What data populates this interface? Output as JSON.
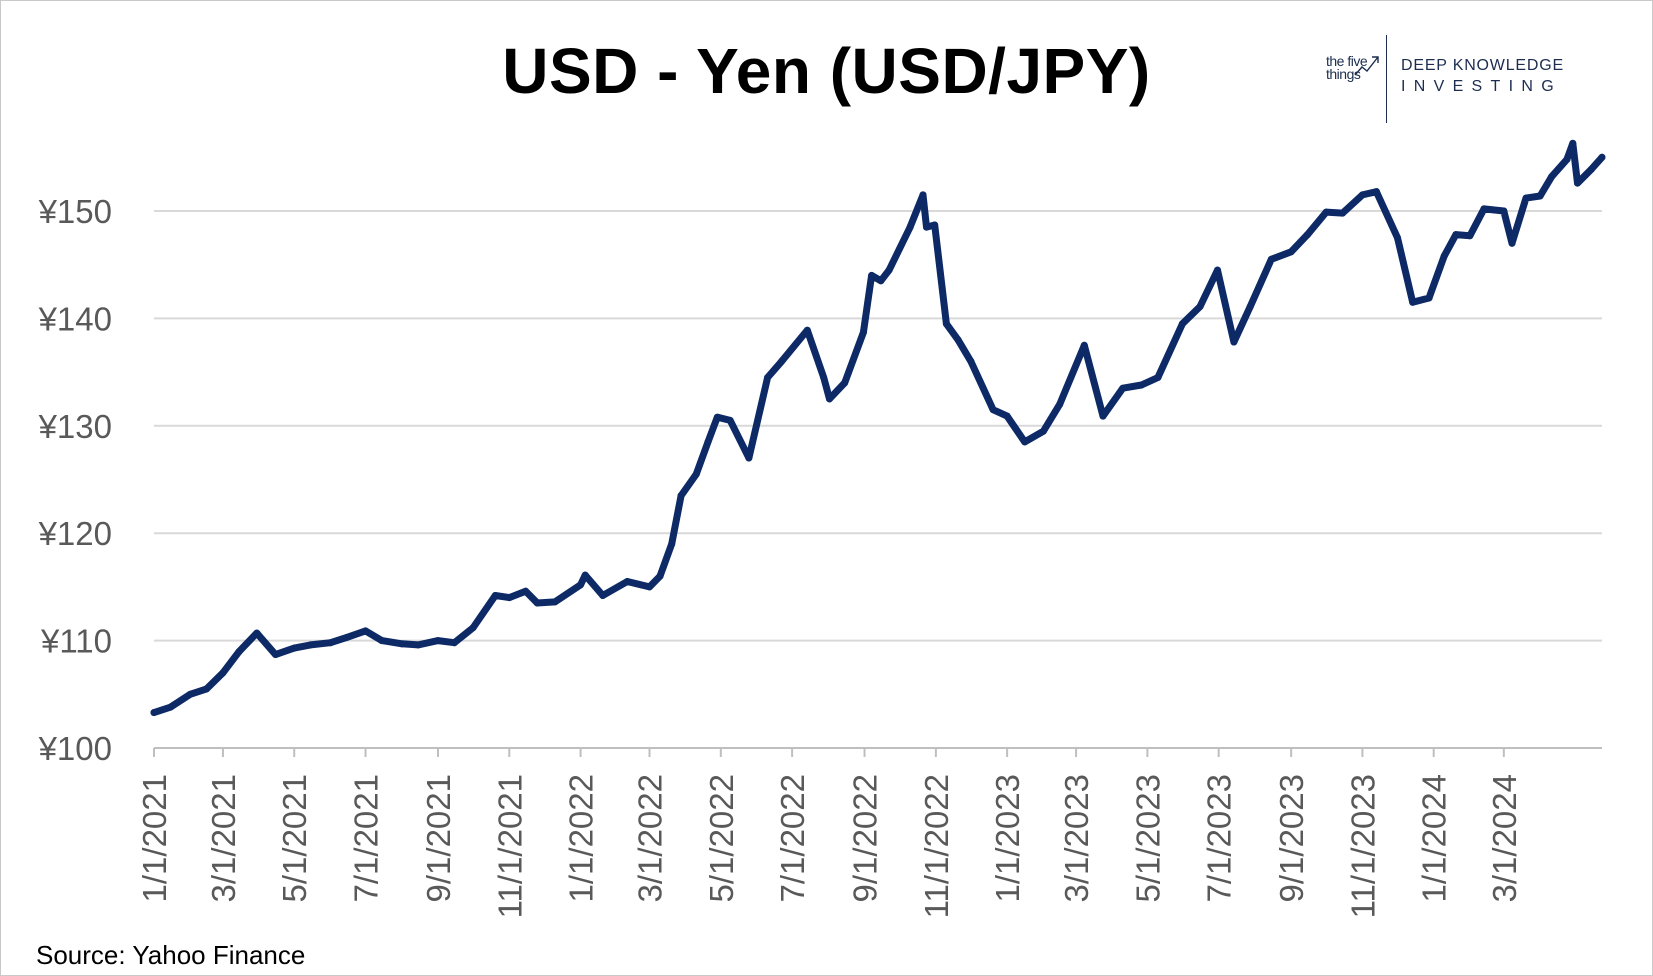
{
  "logo": {
    "small_text": "the five things",
    "line1": "DEEP KNOWLEDGE",
    "line2": "INVESTING"
  },
  "source": "Source: Yahoo Finance",
  "chart_data": {
    "type": "line",
    "title": "USD - Yen (USD/JPY)",
    "xlabel": "",
    "ylabel": "",
    "ylim": [
      100,
      155
    ],
    "yticks": [
      100,
      110,
      120,
      130,
      140,
      150
    ],
    "ytick_labels": [
      "¥100",
      "¥110",
      "¥120",
      "¥130",
      "¥140",
      "¥150"
    ],
    "xticks": [
      "2021-01-01",
      "2021-03-01",
      "2021-05-01",
      "2021-07-01",
      "2021-09-01",
      "2021-11-01",
      "2022-01-01",
      "2022-03-01",
      "2022-05-01",
      "2022-07-01",
      "2022-09-01",
      "2022-11-01",
      "2023-01-01",
      "2023-03-01",
      "2023-05-01",
      "2023-07-01",
      "2023-09-01",
      "2023-11-01",
      "2024-01-01",
      "2024-03-01"
    ],
    "xtick_labels": [
      "1/1/2021",
      "3/1/2021",
      "5/1/2021",
      "7/1/2021",
      "9/1/2021",
      "11/1/2021",
      "1/1/2022",
      "3/1/2022",
      "5/1/2022",
      "7/1/2022",
      "9/1/2022",
      "11/1/2022",
      "1/1/2023",
      "3/1/2023",
      "5/1/2023",
      "7/1/2023",
      "9/1/2023",
      "11/1/2023",
      "1/1/2024",
      "3/1/2024"
    ],
    "grid": "horizontal",
    "colors": {
      "line": "#0d2a66",
      "grid": "#d9d9d9",
      "tick_text": "#595959"
    },
    "series": [
      {
        "x": [
          "2021-01-01",
          "2021-01-15",
          "2021-02-01",
          "2021-02-15",
          "2021-03-01",
          "2021-03-15",
          "2021-03-30",
          "2021-04-15",
          "2021-05-01",
          "2021-05-15",
          "2021-06-01",
          "2021-06-15",
          "2021-07-01",
          "2021-07-15",
          "2021-08-01",
          "2021-08-15",
          "2021-09-01",
          "2021-09-15",
          "2021-10-01",
          "2021-10-20",
          "2021-11-01",
          "2021-11-15",
          "2021-11-25",
          "2021-12-10",
          "2022-01-01",
          "2022-01-05",
          "2022-01-20",
          "2022-02-10",
          "2022-03-01",
          "2022-03-10",
          "2022-03-20",
          "2022-03-28",
          "2022-04-10",
          "2022-04-20",
          "2022-04-28",
          "2022-05-09",
          "2022-05-25",
          "2022-06-10",
          "2022-06-22",
          "2022-07-14",
          "2022-07-28",
          "2022-08-02",
          "2022-08-15",
          "2022-08-31",
          "2022-09-07",
          "2022-09-15",
          "2022-09-22",
          "2022-10-10",
          "2022-10-21",
          "2022-10-24",
          "2022-10-31",
          "2022-11-10",
          "2022-11-20",
          "2022-12-01",
          "2022-12-20",
          "2023-01-01",
          "2023-01-16",
          "2023-02-01",
          "2023-02-15",
          "2023-03-08",
          "2023-03-24",
          "2023-04-10",
          "2023-04-26",
          "2023-05-10",
          "2023-05-31",
          "2023-06-15",
          "2023-06-30",
          "2023-07-14",
          "2023-07-28",
          "2023-08-15",
          "2023-09-01",
          "2023-09-15",
          "2023-10-01",
          "2023-10-15",
          "2023-11-01",
          "2023-11-13",
          "2023-12-01",
          "2023-12-14",
          "2023-12-28",
          "2024-01-10",
          "2024-01-20",
          "2024-02-01",
          "2024-02-13",
          "2024-03-01",
          "2024-03-08",
          "2024-03-20",
          "2024-04-01",
          "2024-04-11",
          "2024-04-24",
          "2024-04-29",
          "2024-05-03",
          "2024-05-15",
          "2024-05-24"
        ],
        "values": [
          103.3,
          103.8,
          105.0,
          105.5,
          107.0,
          109.0,
          110.7,
          108.7,
          109.3,
          109.6,
          109.8,
          110.3,
          110.9,
          110.0,
          109.7,
          109.6,
          110.0,
          109.8,
          111.2,
          114.2,
          114.0,
          114.6,
          113.5,
          113.6,
          115.2,
          116.1,
          114.2,
          115.5,
          115.0,
          116.0,
          119.0,
          123.5,
          125.5,
          128.5,
          130.8,
          130.5,
          127.0,
          134.5,
          136.0,
          138.9,
          134.5,
          132.5,
          134.0,
          138.7,
          144.0,
          143.5,
          144.5,
          148.5,
          151.5,
          148.5,
          148.7,
          139.5,
          138.0,
          136.0,
          131.5,
          130.9,
          128.5,
          129.5,
          132.0,
          137.5,
          130.9,
          133.5,
          133.8,
          134.5,
          139.5,
          141.1,
          144.5,
          137.8,
          141.1,
          145.5,
          146.2,
          147.8,
          149.9,
          149.8,
          151.5,
          151.8,
          147.5,
          141.5,
          141.9,
          145.8,
          147.8,
          147.7,
          150.2,
          150.0,
          147.0,
          151.2,
          151.4,
          153.2,
          154.8,
          156.3,
          152.6,
          153.9,
          155.0
        ]
      }
    ]
  }
}
